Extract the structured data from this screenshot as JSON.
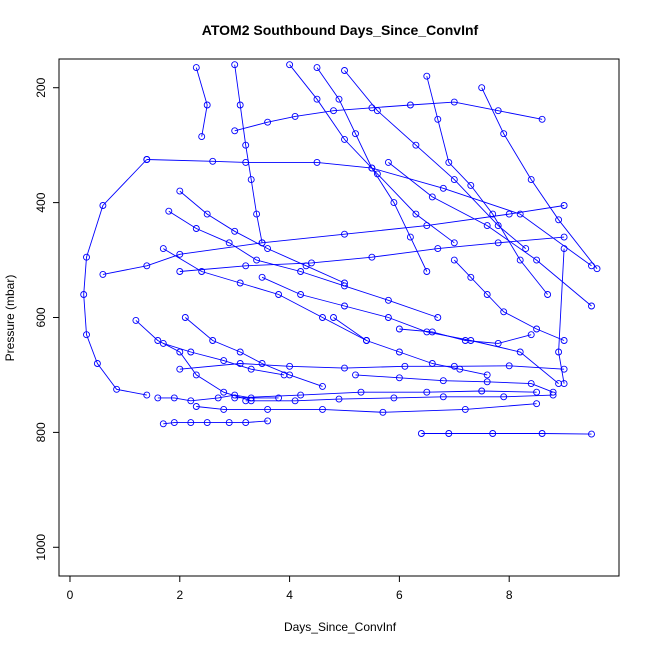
{
  "chart_data": {
    "type": "line",
    "title": "ATOM2 Southbound Days_Since_ConvInf",
    "xlabel": "Days_Since_ConvInf",
    "ylabel": "Pressure (mbar)",
    "xlim": [
      -0.2,
      10.0
    ],
    "ylim": [
      1050,
      150
    ],
    "y_inverted": true,
    "x_ticks": [
      0,
      2,
      4,
      6,
      8
    ],
    "y_ticks": [
      200,
      400,
      600,
      800,
      1000
    ],
    "grid": false,
    "legend": "none",
    "color": "#0000ff",
    "marker": "open-circle",
    "series": [
      {
        "x": [
          1.4,
          0.6,
          0.3,
          0.25,
          0.3,
          0.5,
          0.85,
          1.4
        ],
        "y": [
          325,
          405,
          495,
          560,
          630,
          680,
          725,
          735
        ]
      },
      {
        "x": [
          0.6,
          1.4,
          2.0,
          3.5,
          5.0,
          6.5,
          8.0,
          9.0
        ],
        "y": [
          525,
          510,
          490,
          470,
          455,
          440,
          420,
          405
        ]
      },
      {
        "x": [
          1.4,
          2.6,
          3.2,
          4.5,
          5.5,
          6.8,
          8.2,
          9.5
        ],
        "y": [
          325,
          328,
          330,
          330,
          340,
          375,
          420,
          510
        ]
      },
      {
        "x": [
          1.6,
          1.9,
          2.2,
          2.7,
          3.0,
          3.3,
          3.8
        ],
        "y": [
          740,
          740,
          745,
          740,
          735,
          740,
          740
        ]
      },
      {
        "x": [
          3.0,
          4.2,
          5.3,
          6.5,
          7.5,
          8.5
        ],
        "y": [
          740,
          735,
          730,
          730,
          728,
          730
        ]
      },
      {
        "x": [
          2.3,
          2.8,
          3.6,
          4.6,
          5.7,
          7.2,
          8.5
        ],
        "y": [
          755,
          760,
          760,
          760,
          765,
          760,
          750
        ]
      },
      {
        "x": [
          3.2,
          4.1,
          4.9,
          5.9,
          6.8,
          7.9,
          8.8
        ],
        "y": [
          745,
          745,
          742,
          740,
          738,
          738,
          735
        ]
      },
      {
        "x": [
          2.0,
          3.1,
          4.0,
          5.0,
          6.1,
          7.0,
          8.0,
          9.0
        ],
        "y": [
          690,
          680,
          685,
          688,
          685,
          685,
          684,
          690
        ]
      },
      {
        "x": [
          6.4,
          6.9,
          7.7,
          8.6,
          9.5
        ],
        "y": [
          802,
          802,
          802,
          802,
          803
        ]
      },
      {
        "x": [
          1.7,
          1.9,
          2.2,
          2.5,
          2.9,
          3.2,
          3.6
        ],
        "y": [
          785,
          783,
          783,
          783,
          783,
          783,
          780
        ]
      },
      {
        "x": [
          1.2,
          1.6,
          2.0,
          2.3,
          2.8,
          3.3
        ],
        "y": [
          605,
          640,
          660,
          700,
          730,
          745
        ]
      },
      {
        "x": [
          2.3,
          2.5,
          2.4
        ],
        "y": [
          165,
          230,
          285
        ]
      },
      {
        "x": [
          3.0,
          3.6,
          4.1,
          4.8,
          5.5,
          6.2,
          7.0,
          7.8,
          8.6
        ],
        "y": [
          275,
          260,
          250,
          240,
          235,
          230,
          225,
          240,
          255
        ]
      },
      {
        "x": [
          5.8,
          6.6,
          7.6,
          8.5,
          9.5
        ],
        "y": [
          330,
          390,
          440,
          500,
          580
        ]
      },
      {
        "x": [
          1.8,
          2.3,
          2.9,
          3.4,
          4.2,
          5.0,
          5.8,
          6.7
        ],
        "y": [
          415,
          445,
          470,
          500,
          520,
          545,
          570,
          600
        ]
      },
      {
        "x": [
          3.5,
          4.2,
          5.0,
          5.8,
          6.5,
          7.3,
          8.2,
          8.9
        ],
        "y": [
          530,
          560,
          580,
          600,
          625,
          640,
          660,
          715
        ]
      },
      {
        "x": [
          2.1,
          2.6,
          3.1,
          3.5,
          4.0,
          4.6
        ],
        "y": [
          600,
          640,
          660,
          680,
          700,
          720
        ]
      },
      {
        "x": [
          5.0,
          5.6,
          6.3,
          7.0,
          7.8,
          8.3
        ],
        "y": [
          170,
          240,
          300,
          360,
          440,
          480
        ]
      },
      {
        "x": [
          6.5,
          6.7,
          6.9,
          7.3,
          7.7,
          8.2,
          8.7
        ],
        "y": [
          180,
          255,
          330,
          370,
          420,
          500,
          560
        ]
      },
      {
        "x": [
          4.5,
          4.9,
          5.2,
          5.5,
          5.9,
          6.2,
          6.5
        ],
        "y": [
          165,
          220,
          280,
          340,
          400,
          460,
          520
        ]
      },
      {
        "x": [
          7.5,
          7.9,
          8.4,
          8.9,
          9.6
        ],
        "y": [
          200,
          280,
          360,
          430,
          515
        ]
      },
      {
        "x": [
          2.0,
          3.2,
          4.4,
          5.5,
          6.7,
          7.8,
          9.0
        ],
        "y": [
          520,
          510,
          505,
          495,
          480,
          470,
          460
        ]
      },
      {
        "x": [
          4.8,
          5.4,
          6.0,
          6.6,
          7.1,
          7.6
        ],
        "y": [
          600,
          640,
          660,
          680,
          690,
          700
        ]
      },
      {
        "x": [
          6.0,
          6.6,
          7.2,
          7.8,
          8.4
        ],
        "y": [
          620,
          625,
          640,
          645,
          630
        ]
      },
      {
        "x": [
          9.0,
          8.9,
          9.0
        ],
        "y": [
          480,
          660,
          715
        ]
      },
      {
        "x": [
          5.2,
          6.0,
          6.8,
          7.6,
          8.4,
          8.8
        ],
        "y": [
          700,
          705,
          710,
          712,
          715,
          730
        ]
      },
      {
        "x": [
          1.7,
          2.4,
          3.1,
          3.8,
          4.6,
          5.4
        ],
        "y": [
          480,
          520,
          540,
          560,
          600,
          640
        ]
      },
      {
        "x": [
          2.0,
          2.5,
          3.0,
          3.6,
          4.3,
          5.0
        ],
        "y": [
          380,
          420,
          450,
          480,
          510,
          540
        ]
      },
      {
        "x": [
          3.0,
          3.1,
          3.2,
          3.3,
          3.4,
          3.5
        ],
        "y": [
          160,
          230,
          300,
          360,
          420,
          470
        ]
      },
      {
        "x": [
          4.0,
          4.5,
          5.0,
          5.6,
          6.3,
          7.0
        ],
        "y": [
          160,
          220,
          290,
          350,
          420,
          470
        ]
      },
      {
        "x": [
          1.7,
          2.2,
          2.8,
          3.3,
          3.9
        ],
        "y": [
          645,
          660,
          675,
          690,
          700
        ]
      },
      {
        "x": [
          7.0,
          7.3,
          7.6,
          7.9,
          8.5,
          9.0
        ],
        "y": [
          500,
          530,
          560,
          590,
          620,
          640
        ]
      }
    ]
  }
}
